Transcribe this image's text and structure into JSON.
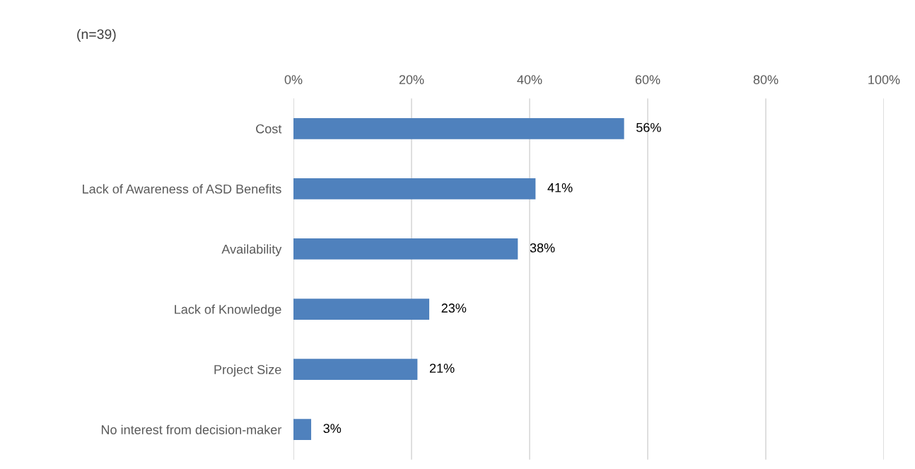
{
  "chart_data": {
    "type": "bar",
    "orientation": "horizontal",
    "title": "(n=39)",
    "categories": [
      "Cost",
      "Lack of Awareness of ASD Benefits",
      "Availability",
      "Lack of Knowledge",
      "Project Size",
      "No interest from decision-maker"
    ],
    "values": [
      56,
      41,
      38,
      23,
      21,
      3
    ],
    "value_labels": [
      "56%",
      "41%",
      "38%",
      "23%",
      "21%",
      "3%"
    ],
    "color": "#4f81bd",
    "xlim": [
      0,
      100
    ],
    "xticks": [
      {
        "value": 0,
        "label": "0%"
      },
      {
        "value": 20,
        "label": "20%"
      },
      {
        "value": 40,
        "label": "40%"
      },
      {
        "value": 60,
        "label": "60%"
      },
      {
        "value": 80,
        "label": "80%"
      },
      {
        "value": 100,
        "label": "100%"
      }
    ],
    "grid": "x"
  }
}
